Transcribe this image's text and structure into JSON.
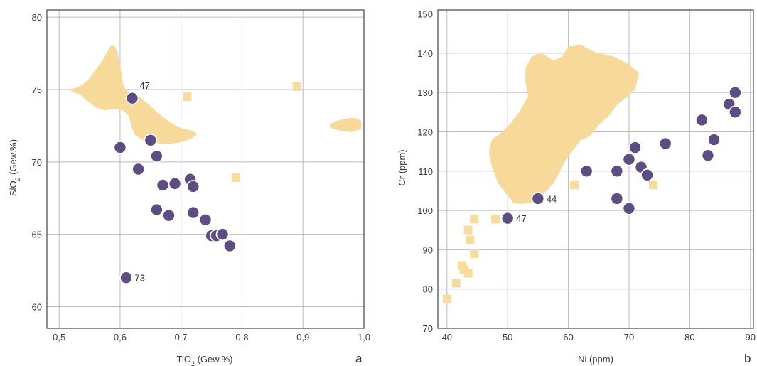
{
  "colors": {
    "field": "#f7d99a",
    "circle": "#5e4d83",
    "circle_edge": "#ffffff",
    "square": "#f7dc9c",
    "grid": "#b7b9cf",
    "frame": "#5b5d78"
  },
  "chart_data": [
    {
      "type": "scatter",
      "panel": "a",
      "xlabel_main": "TiO",
      "xlabel_sub": "2",
      "xlabel_rest": " (Gew.%)",
      "ylabel_main": "SiO",
      "ylabel_sub": "2",
      "ylabel_rest": " (Gew.%)",
      "xlim": [
        0.48,
        1.0
      ],
      "ylim": [
        58.5,
        80.5
      ],
      "xticks": [
        0.5,
        0.6,
        0.7,
        0.8,
        0.9,
        1.0
      ],
      "xtick_labels": [
        "0,5",
        "0,6",
        "0,7",
        "0,8",
        "0,9",
        "1,0"
      ],
      "yticks": [
        60,
        65,
        70,
        75,
        80
      ],
      "ytick_labels": [
        "60",
        "65",
        "70",
        "75",
        "80"
      ],
      "grid": true,
      "fields": [
        [
          [
            0.52,
            75.0
          ],
          [
            0.53,
            75.1
          ],
          [
            0.545,
            75.5
          ],
          [
            0.555,
            76.0
          ],
          [
            0.565,
            76.6
          ],
          [
            0.575,
            77.2
          ],
          [
            0.585,
            78.0
          ],
          [
            0.59,
            78.0
          ],
          [
            0.595,
            77.6
          ],
          [
            0.6,
            76.5
          ],
          [
            0.605,
            75.2
          ],
          [
            0.615,
            74.7
          ],
          [
            0.63,
            74.5
          ],
          [
            0.645,
            74.0
          ],
          [
            0.66,
            73.4
          ],
          [
            0.675,
            72.9
          ],
          [
            0.69,
            72.5
          ],
          [
            0.7,
            72.3
          ],
          [
            0.71,
            72.2
          ],
          [
            0.72,
            72.1
          ],
          [
            0.725,
            71.9
          ],
          [
            0.715,
            71.6
          ],
          [
            0.7,
            71.4
          ],
          [
            0.685,
            71.3
          ],
          [
            0.665,
            71.3
          ],
          [
            0.65,
            71.4
          ],
          [
            0.635,
            71.6
          ],
          [
            0.625,
            71.9
          ],
          [
            0.62,
            72.4
          ],
          [
            0.615,
            73.2
          ],
          [
            0.605,
            73.6
          ],
          [
            0.59,
            73.7
          ],
          [
            0.575,
            73.6
          ],
          [
            0.56,
            73.8
          ],
          [
            0.545,
            74.3
          ],
          [
            0.535,
            74.7
          ],
          [
            0.52,
            74.9
          ]
        ],
        [
          [
            0.945,
            72.6
          ],
          [
            0.955,
            72.8
          ],
          [
            0.975,
            73.0
          ],
          [
            0.985,
            73.0
          ],
          [
            0.995,
            72.8
          ],
          [
            0.995,
            72.3
          ],
          [
            0.98,
            72.1
          ],
          [
            0.96,
            72.2
          ],
          [
            0.945,
            72.4
          ]
        ]
      ],
      "circles": [
        {
          "x": 0.62,
          "y": 74.4
        },
        {
          "x": 0.65,
          "y": 71.5
        },
        {
          "x": 0.6,
          "y": 71.0
        },
        {
          "x": 0.66,
          "y": 70.4
        },
        {
          "x": 0.63,
          "y": 69.5
        },
        {
          "x": 0.715,
          "y": 68.8
        },
        {
          "x": 0.69,
          "y": 68.5
        },
        {
          "x": 0.67,
          "y": 68.4
        },
        {
          "x": 0.72,
          "y": 68.3
        },
        {
          "x": 0.66,
          "y": 66.7
        },
        {
          "x": 0.72,
          "y": 66.5
        },
        {
          "x": 0.68,
          "y": 66.3
        },
        {
          "x": 0.74,
          "y": 66.0
        },
        {
          "x": 0.75,
          "y": 64.9
        },
        {
          "x": 0.758,
          "y": 64.9
        },
        {
          "x": 0.768,
          "y": 65.0
        },
        {
          "x": 0.78,
          "y": 64.2
        },
        {
          "x": 0.61,
          "y": 62.0
        }
      ],
      "squares": [
        {
          "x": 0.71,
          "y": 74.5
        },
        {
          "x": 0.89,
          "y": 75.2
        },
        {
          "x": 0.79,
          "y": 68.9
        }
      ],
      "labels": [
        {
          "text": "47",
          "x": 0.632,
          "y": 75.3
        },
        {
          "text": "73",
          "x": 0.624,
          "y": 62.0
        }
      ]
    },
    {
      "type": "scatter",
      "panel": "b",
      "xlabel_main": "Ni (ppm)",
      "ylabel_main": "Cr (ppm)",
      "xlim": [
        38.5,
        90.5
      ],
      "ylim": [
        70,
        151
      ],
      "xticks": [
        40,
        50,
        60,
        70,
        80,
        90
      ],
      "xtick_labels": [
        "40",
        "50",
        "60",
        "70",
        "80",
        "90"
      ],
      "yticks": [
        70,
        80,
        90,
        100,
        110,
        120,
        130,
        140,
        150
      ],
      "ytick_labels": [
        "70",
        "80",
        "90",
        "100",
        "110",
        "120",
        "130",
        "140",
        "150"
      ],
      "grid": true,
      "fields": [
        [
          [
            51,
            102
          ],
          [
            50,
            104
          ],
          [
            48.5,
            107
          ],
          [
            47.5,
            111
          ],
          [
            47,
            115
          ],
          [
            47.5,
            118
          ],
          [
            48.5,
            119
          ],
          [
            50.5,
            122
          ],
          [
            52,
            125
          ],
          [
            53.5,
            129
          ],
          [
            53,
            133
          ],
          [
            53,
            136
          ],
          [
            54,
            139
          ],
          [
            55.5,
            140
          ],
          [
            57.5,
            138
          ],
          [
            59,
            139
          ],
          [
            60,
            141.5
          ],
          [
            62,
            142
          ],
          [
            64.5,
            140
          ],
          [
            67.5,
            139
          ],
          [
            70,
            137
          ],
          [
            71.5,
            135
          ],
          [
            71,
            131
          ],
          [
            70,
            129.5
          ],
          [
            68,
            127
          ],
          [
            66.5,
            124
          ],
          [
            65,
            122
          ],
          [
            63.5,
            119
          ],
          [
            62,
            118
          ],
          [
            61,
            116
          ],
          [
            59.5,
            113
          ],
          [
            58.5,
            110
          ],
          [
            57.5,
            107
          ],
          [
            56,
            104.5
          ],
          [
            54,
            102
          ],
          [
            52,
            101.8
          ],
          [
            51,
            102
          ]
        ]
      ],
      "circles": [
        {
          "x": 55,
          "y": 103
        },
        {
          "x": 50,
          "y": 98
        },
        {
          "x": 63,
          "y": 110
        },
        {
          "x": 68,
          "y": 110
        },
        {
          "x": 68,
          "y": 103
        },
        {
          "x": 70,
          "y": 113
        },
        {
          "x": 70,
          "y": 100.5
        },
        {
          "x": 71,
          "y": 116
        },
        {
          "x": 72,
          "y": 111
        },
        {
          "x": 73,
          "y": 109
        },
        {
          "x": 76,
          "y": 117
        },
        {
          "x": 82,
          "y": 123
        },
        {
          "x": 83,
          "y": 114
        },
        {
          "x": 84,
          "y": 118
        },
        {
          "x": 86.5,
          "y": 127
        },
        {
          "x": 87.5,
          "y": 125
        },
        {
          "x": 87.5,
          "y": 130
        }
      ],
      "squares": [
        {
          "x": 40,
          "y": 77.5
        },
        {
          "x": 41.5,
          "y": 81.5
        },
        {
          "x": 42.5,
          "y": 86
        },
        {
          "x": 42.8,
          "y": 85
        },
        {
          "x": 43.5,
          "y": 84
        },
        {
          "x": 43.5,
          "y": 95
        },
        {
          "x": 43.8,
          "y": 92.5
        },
        {
          "x": 44.5,
          "y": 97.8
        },
        {
          "x": 44.5,
          "y": 89
        },
        {
          "x": 48,
          "y": 97.8
        },
        {
          "x": 61,
          "y": 106.5
        },
        {
          "x": 74,
          "y": 106.5
        }
      ],
      "labels": [
        {
          "text": "44",
          "x": 56.4,
          "y": 103
        },
        {
          "text": "47",
          "x": 51.4,
          "y": 98
        }
      ]
    }
  ]
}
